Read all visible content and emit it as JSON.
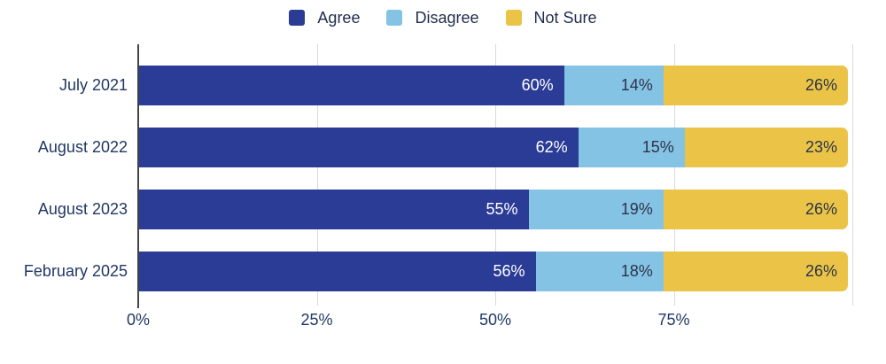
{
  "chart_data": {
    "type": "bar",
    "variant": "horizontal-stacked",
    "title": "",
    "categories": [
      "July 2021",
      "August 2022",
      "August 2023",
      "February 2025"
    ],
    "series": [
      {
        "name": "Agree",
        "color": "#2B3C96",
        "label_color": "#FFFFFF",
        "values": [
          60,
          62,
          55,
          56
        ]
      },
      {
        "name": "Disagree",
        "color": "#85C3E5",
        "label_color": "#2B3447",
        "values": [
          14,
          15,
          19,
          18
        ]
      },
      {
        "name": "Not Sure",
        "color": "#EBC447",
        "label_color": "#2B3447",
        "values": [
          26,
          23,
          26,
          26
        ]
      }
    ],
    "value_suffix": "%",
    "xlim": [
      0,
      100
    ],
    "x_ticks": [
      {
        "value": 0,
        "label": "0%"
      },
      {
        "value": 25,
        "label": "25%"
      },
      {
        "value": 50,
        "label": "50%"
      },
      {
        "value": 75,
        "label": "75%"
      }
    ],
    "x_gridlines": [
      25,
      50,
      75,
      100
    ],
    "grid": "vertical",
    "legend_position": "top-center",
    "colors": {
      "gridline": "#D9D9D9",
      "axis_line": "#454545",
      "category_label": "#203864",
      "tick_label": "#203864",
      "legend_label": "#1F2C4D",
      "background": "#FFFFFF"
    }
  }
}
